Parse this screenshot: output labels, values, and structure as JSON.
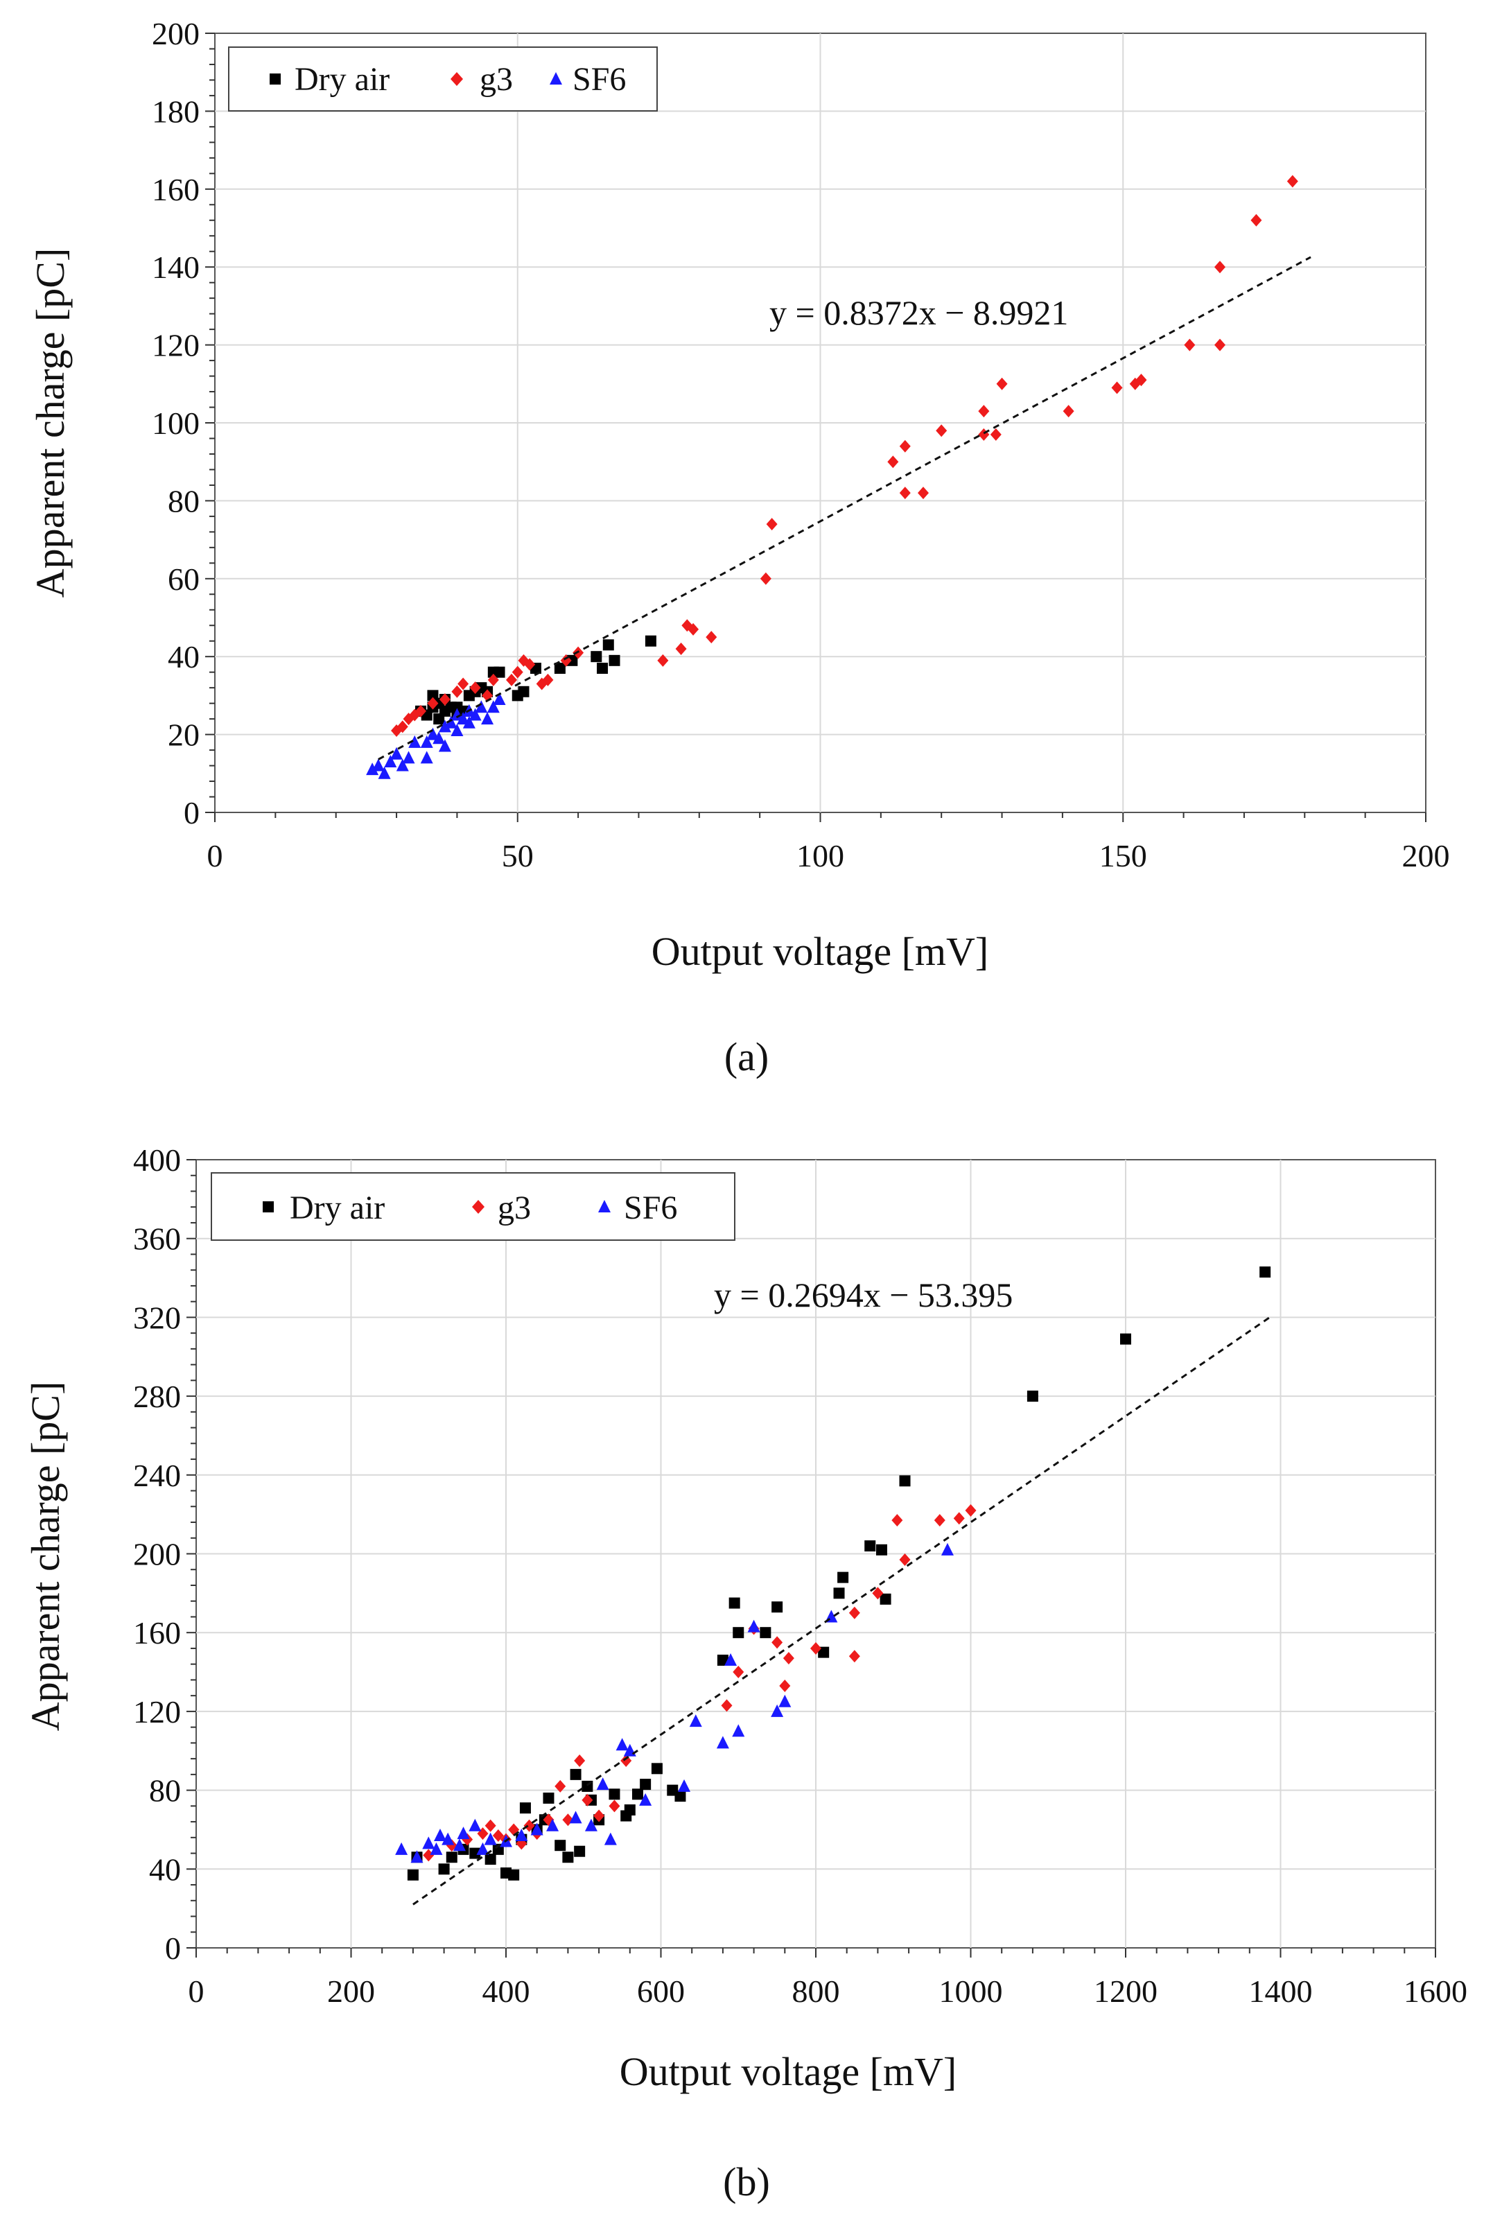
{
  "chart_data": [
    {
      "type": "scatter",
      "panel_label": "(a)",
      "xlabel": "Output voltage [mV]",
      "ylabel": "Apparent charge [pC]",
      "xlim": [
        0,
        200
      ],
      "ylim": [
        0,
        200
      ],
      "xticks": [
        0,
        50,
        100,
        150,
        200
      ],
      "yticks": [
        0,
        20,
        40,
        60,
        80,
        100,
        120,
        140,
        160,
        180,
        200
      ],
      "grid": true,
      "legend_position": "top-left",
      "trendline": {
        "equation": "y = 0.8372x − 8.9921",
        "slope": 0.8372,
        "intercept": -8.9921,
        "x_range": [
          27,
          181
        ]
      },
      "series": [
        {
          "name": "Dry air",
          "color": "#000000",
          "marker": "square",
          "points": [
            [
              34,
              26
            ],
            [
              35,
              25
            ],
            [
              36,
              30
            ],
            [
              36,
              27
            ],
            [
              37,
              24
            ],
            [
              37,
              28
            ],
            [
              38,
              26
            ],
            [
              38,
              29
            ],
            [
              39,
              27
            ],
            [
              40,
              25
            ],
            [
              40,
              27
            ],
            [
              41,
              26
            ],
            [
              42,
              30
            ],
            [
              43,
              31
            ],
            [
              44,
              32
            ],
            [
              45,
              31
            ],
            [
              46,
              36
            ],
            [
              47,
              36
            ],
            [
              50,
              30
            ],
            [
              51,
              31
            ],
            [
              53,
              37
            ],
            [
              57,
              37
            ],
            [
              59,
              39
            ],
            [
              63,
              40
            ],
            [
              64,
              37
            ],
            [
              65,
              43
            ],
            [
              66,
              39
            ],
            [
              72,
              44
            ]
          ]
        },
        {
          "name": "g3",
          "color": "#ee1c1c",
          "marker": "diamond",
          "points": [
            [
              30,
              21
            ],
            [
              31,
              22
            ],
            [
              32,
              24
            ],
            [
              33,
              25
            ],
            [
              34,
              26
            ],
            [
              36,
              28
            ],
            [
              38,
              29
            ],
            [
              40,
              31
            ],
            [
              41,
              33
            ],
            [
              43,
              32
            ],
            [
              45,
              30
            ],
            [
              46,
              34
            ],
            [
              49,
              34
            ],
            [
              50,
              36
            ],
            [
              51,
              39
            ],
            [
              52,
              38
            ],
            [
              54,
              33
            ],
            [
              55,
              34
            ],
            [
              58,
              39
            ],
            [
              60,
              41
            ],
            [
              74,
              39
            ],
            [
              77,
              42
            ],
            [
              78,
              48
            ],
            [
              79,
              47
            ],
            [
              82,
              45
            ],
            [
              91,
              60
            ],
            [
              92,
              74
            ],
            [
              112,
              90
            ],
            [
              114,
              82
            ],
            [
              114,
              94
            ],
            [
              117,
              82
            ],
            [
              120,
              98
            ],
            [
              127,
              97
            ],
            [
              127,
              103
            ],
            [
              129,
              97
            ],
            [
              130,
              110
            ],
            [
              141,
              103
            ],
            [
              149,
              109
            ],
            [
              152,
              110
            ],
            [
              153,
              111
            ],
            [
              161,
              120
            ],
            [
              166,
              120
            ],
            [
              166,
              140
            ],
            [
              172,
              152
            ],
            [
              178,
              162
            ]
          ]
        },
        {
          "name": "SF6",
          "color": "#1a1aff",
          "marker": "triangle",
          "points": [
            [
              26,
              11
            ],
            [
              27,
              12
            ],
            [
              28,
              10
            ],
            [
              29,
              13
            ],
            [
              30,
              15
            ],
            [
              31,
              12
            ],
            [
              32,
              14
            ],
            [
              33,
              18
            ],
            [
              35,
              14
            ],
            [
              35,
              18
            ],
            [
              36,
              20
            ],
            [
              37,
              19
            ],
            [
              38,
              17
            ],
            [
              38,
              22
            ],
            [
              39,
              23
            ],
            [
              40,
              21
            ],
            [
              40,
              25
            ],
            [
              41,
              24
            ],
            [
              42,
              26
            ],
            [
              42,
              23
            ],
            [
              43,
              25
            ],
            [
              44,
              27
            ],
            [
              45,
              24
            ],
            [
              46,
              27
            ],
            [
              47,
              29
            ]
          ]
        }
      ]
    },
    {
      "type": "scatter",
      "panel_label": "(b)",
      "xlabel": "Output voltage [mV]",
      "ylabel": "Apparent charge [pC]",
      "xlim": [
        0,
        1600
      ],
      "ylim": [
        0,
        400
      ],
      "xticks": [
        0,
        200,
        400,
        600,
        800,
        1000,
        1200,
        1400,
        1600
      ],
      "yticks": [
        0,
        40,
        80,
        120,
        160,
        200,
        240,
        280,
        320,
        360,
        400
      ],
      "grid": true,
      "legend_position": "top-left",
      "trendline": {
        "equation": "y = 0.2694x − 53.395",
        "slope": 0.2694,
        "intercept": -53.395,
        "x_range": [
          280,
          1390
        ]
      },
      "series": [
        {
          "name": "Dry air",
          "color": "#000000",
          "marker": "square",
          "points": [
            [
              280,
              37
            ],
            [
              285,
              46
            ],
            [
              320,
              40
            ],
            [
              330,
              46
            ],
            [
              345,
              50
            ],
            [
              360,
              48
            ],
            [
              380,
              45
            ],
            [
              390,
              50
            ],
            [
              400,
              38
            ],
            [
              410,
              37
            ],
            [
              420,
              55
            ],
            [
              425,
              71
            ],
            [
              440,
              60
            ],
            [
              450,
              65
            ],
            [
              455,
              76
            ],
            [
              470,
              52
            ],
            [
              480,
              46
            ],
            [
              490,
              88
            ],
            [
              495,
              49
            ],
            [
              505,
              82
            ],
            [
              510,
              75
            ],
            [
              520,
              65
            ],
            [
              540,
              78
            ],
            [
              555,
              67
            ],
            [
              560,
              70
            ],
            [
              570,
              78
            ],
            [
              580,
              83
            ],
            [
              595,
              91
            ],
            [
              615,
              80
            ],
            [
              625,
              77
            ],
            [
              680,
              146
            ],
            [
              695,
              175
            ],
            [
              700,
              160
            ],
            [
              735,
              160
            ],
            [
              750,
              173
            ],
            [
              810,
              150
            ],
            [
              830,
              180
            ],
            [
              835,
              188
            ],
            [
              870,
              204
            ],
            [
              885,
              202
            ],
            [
              890,
              177
            ],
            [
              915,
              237
            ],
            [
              1080,
              280
            ],
            [
              1200,
              309
            ],
            [
              1380,
              343
            ]
          ]
        },
        {
          "name": "g3",
          "color": "#ee1c1c",
          "marker": "diamond",
          "points": [
            [
              300,
              47
            ],
            [
              330,
              52
            ],
            [
              350,
              55
            ],
            [
              370,
              58
            ],
            [
              380,
              62
            ],
            [
              390,
              57
            ],
            [
              400,
              55
            ],
            [
              410,
              60
            ],
            [
              420,
              53
            ],
            [
              430,
              62
            ],
            [
              440,
              58
            ],
            [
              455,
              65
            ],
            [
              470,
              82
            ],
            [
              480,
              65
            ],
            [
              495,
              95
            ],
            [
              505,
              75
            ],
            [
              520,
              67
            ],
            [
              540,
              72
            ],
            [
              555,
              95
            ],
            [
              685,
              123
            ],
            [
              700,
              140
            ],
            [
              720,
              162
            ],
            [
              750,
              155
            ],
            [
              760,
              133
            ],
            [
              765,
              147
            ],
            [
              800,
              152
            ],
            [
              850,
              148
            ],
            [
              850,
              170
            ],
            [
              880,
              180
            ],
            [
              905,
              217
            ],
            [
              915,
              197
            ],
            [
              960,
              217
            ],
            [
              985,
              218
            ],
            [
              1000,
              222
            ]
          ]
        },
        {
          "name": "SF6",
          "color": "#1a1aff",
          "marker": "triangle",
          "points": [
            [
              265,
              50
            ],
            [
              285,
              46
            ],
            [
              300,
              53
            ],
            [
              310,
              50
            ],
            [
              315,
              57
            ],
            [
              325,
              55
            ],
            [
              340,
              52
            ],
            [
              345,
              58
            ],
            [
              360,
              62
            ],
            [
              370,
              50
            ],
            [
              380,
              55
            ],
            [
              400,
              54
            ],
            [
              420,
              57
            ],
            [
              440,
              60
            ],
            [
              460,
              62
            ],
            [
              490,
              66
            ],
            [
              510,
              62
            ],
            [
              525,
              83
            ],
            [
              535,
              55
            ],
            [
              550,
              103
            ],
            [
              560,
              100
            ],
            [
              580,
              75
            ],
            [
              630,
              82
            ],
            [
              645,
              115
            ],
            [
              680,
              104
            ],
            [
              690,
              146
            ],
            [
              700,
              110
            ],
            [
              720,
              163
            ],
            [
              750,
              120
            ],
            [
              760,
              125
            ],
            [
              820,
              168
            ],
            [
              970,
              202
            ]
          ]
        }
      ]
    }
  ]
}
